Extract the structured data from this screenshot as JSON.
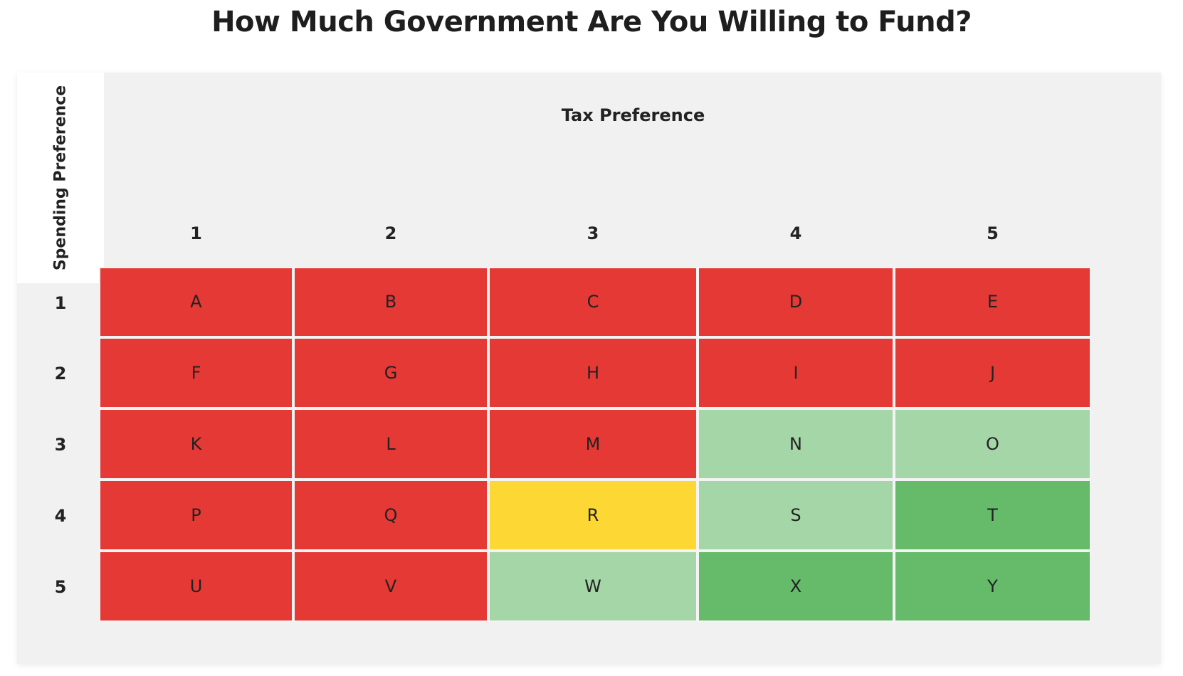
{
  "title": "How Much Government Are You Willing to Fund?",
  "chart_data": {
    "type": "heatmap",
    "title": "How Much Government Are You Willing to Fund?",
    "xlabel": "Tax Preference",
    "ylabel": "Spending Preference",
    "x_categories": [
      "1",
      "2",
      "3",
      "4",
      "5"
    ],
    "y_categories": [
      "1",
      "2",
      "3",
      "4",
      "5"
    ],
    "cells": [
      [
        "A",
        "B",
        "C",
        "D",
        "E"
      ],
      [
        "F",
        "G",
        "H",
        "I",
        "J"
      ],
      [
        "K",
        "L",
        "M",
        "N",
        "O"
      ],
      [
        "P",
        "Q",
        "R",
        "S",
        "T"
      ],
      [
        "U",
        "V",
        "W",
        "X",
        "Y"
      ]
    ],
    "cell_colors": [
      [
        "#e53935",
        "#e53935",
        "#e53935",
        "#e53935",
        "#e53935"
      ],
      [
        "#e53935",
        "#e53935",
        "#e53935",
        "#e53935",
        "#e53935"
      ],
      [
        "#e53935",
        "#e53935",
        "#e53935",
        "#a5d6a7",
        "#a5d6a7"
      ],
      [
        "#e53935",
        "#e53935",
        "#fdd835",
        "#a5d6a7",
        "#66bb6a"
      ],
      [
        "#e53935",
        "#e53935",
        "#a5d6a7",
        "#66bb6a",
        "#66bb6a"
      ]
    ],
    "colors": {
      "red": "#e53935",
      "yellow": "#fdd835",
      "light_green": "#a5d6a7",
      "green": "#66bb6a",
      "header_background": "#f1f1f1"
    }
  }
}
